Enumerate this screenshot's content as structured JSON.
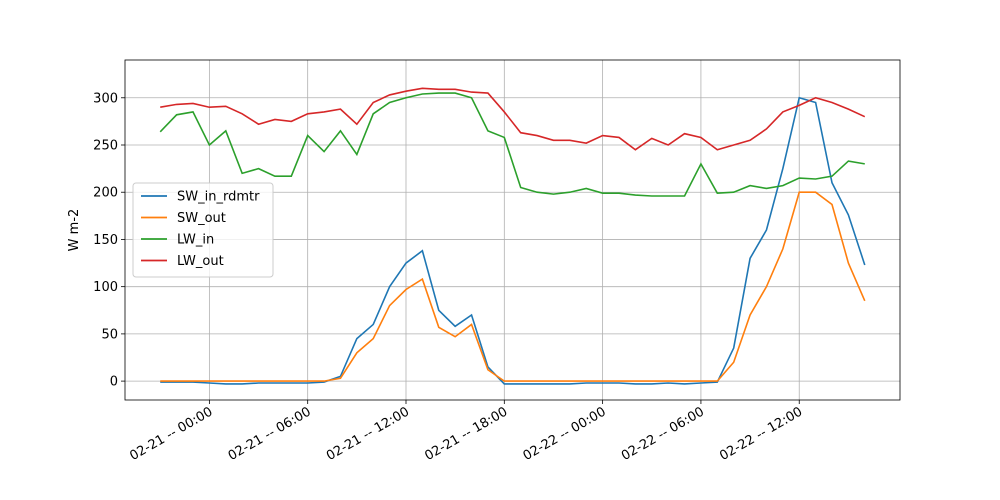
{
  "chart_data": {
    "type": "line",
    "y_label": "W m-2",
    "x": [
      "02-20 -- 21:00",
      "02-20 -- 22:00",
      "02-20 -- 23:00",
      "02-21 -- 00:00",
      "02-21 -- 01:00",
      "02-21 -- 02:00",
      "02-21 -- 03:00",
      "02-21 -- 04:00",
      "02-21 -- 05:00",
      "02-21 -- 06:00",
      "02-21 -- 07:00",
      "02-21 -- 08:00",
      "02-21 -- 09:00",
      "02-21 -- 10:00",
      "02-21 -- 11:00",
      "02-21 -- 12:00",
      "02-21 -- 13:00",
      "02-21 -- 14:00",
      "02-21 -- 15:00",
      "02-21 -- 16:00",
      "02-21 -- 17:00",
      "02-21 -- 18:00",
      "02-21 -- 19:00",
      "02-21 -- 20:00",
      "02-21 -- 21:00",
      "02-21 -- 22:00",
      "02-21 -- 23:00",
      "02-22 -- 00:00",
      "02-22 -- 01:00",
      "02-22 -- 02:00",
      "02-22 -- 03:00",
      "02-22 -- 04:00",
      "02-22 -- 05:00",
      "02-22 -- 06:00",
      "02-22 -- 07:00",
      "02-22 -- 08:00",
      "02-22 -- 09:00",
      "02-22 -- 10:00",
      "02-22 -- 11:00",
      "02-22 -- 12:00",
      "02-22 -- 13:00",
      "02-22 -- 14:00",
      "02-22 -- 15:00",
      "02-22 -- 16:00"
    ],
    "series": [
      {
        "name": "SW_in_rdmtr",
        "color": "#1f77b4",
        "values": [
          -1,
          -1,
          -1,
          -2,
          -3,
          -3,
          -2,
          -2,
          -2,
          -2,
          -1,
          5,
          45,
          60,
          100,
          125,
          138,
          75,
          58,
          70,
          15,
          -3,
          -3,
          -3,
          -3,
          -3,
          -2,
          -2,
          -2,
          -3,
          -3,
          -2,
          -3,
          -2,
          -1,
          35,
          130,
          160,
          225,
          300,
          295,
          210,
          176,
          123
        ]
      },
      {
        "name": "SW_out",
        "color": "#ff7f0e",
        "values": [
          0,
          0,
          0,
          0,
          0,
          0,
          0,
          0,
          0,
          0,
          0,
          3,
          30,
          45,
          80,
          97,
          108,
          57,
          47,
          60,
          12,
          0,
          0,
          0,
          0,
          0,
          0,
          0,
          0,
          0,
          0,
          0,
          0,
          0,
          0,
          20,
          70,
          100,
          140,
          200,
          200,
          187,
          125,
          85
        ]
      },
      {
        "name": "LW_in",
        "color": "#2ca02c",
        "values": [
          264,
          282,
          285,
          250,
          265,
          220,
          225,
          217,
          217,
          260,
          243,
          265,
          240,
          283,
          295,
          300,
          304,
          305,
          305,
          300,
          265,
          258,
          205,
          200,
          198,
          200,
          204,
          199,
          199,
          197,
          196,
          196,
          196,
          230,
          199,
          200,
          207,
          204,
          207,
          215,
          214,
          217,
          233,
          230
        ]
      },
      {
        "name": "LW_out",
        "color": "#d62728",
        "values": [
          290,
          293,
          294,
          290,
          291,
          283,
          272,
          277,
          275,
          283,
          285,
          288,
          272,
          295,
          303,
          307,
          310,
          309,
          309,
          306,
          305,
          285,
          263,
          260,
          255,
          255,
          252,
          260,
          258,
          245,
          257,
          250,
          262,
          258,
          245,
          250,
          255,
          267,
          285,
          292,
          300,
          295,
          288,
          280
        ]
      }
    ],
    "xlim": [
      "02-20 -- 18:51",
      "02-22 -- 18:09"
    ],
    "xticks": [
      "02-21 -- 00:00",
      "02-21 -- 06:00",
      "02-21 -- 12:00",
      "02-21 -- 18:00",
      "02-22 -- 00:00",
      "02-22 -- 06:00",
      "02-22 -- 12:00"
    ],
    "ylim": [
      -20,
      340
    ],
    "yticks": [
      0,
      50,
      100,
      150,
      200,
      250,
      300
    ],
    "grid": true,
    "legend": "center left"
  }
}
